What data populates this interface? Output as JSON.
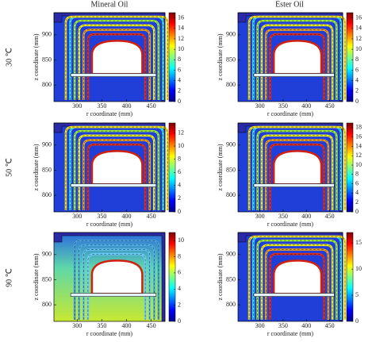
{
  "column_titles": [
    "Mineral Oil",
    "Ester Oil"
  ],
  "row_labels": [
    "30 ℃",
    "50 ℃",
    "90 ℃"
  ],
  "chart_data": [
    {
      "type": "field",
      "xlabel": "r coordinate (mm)",
      "ylabel": "z coordinate (mm)",
      "xlim": [
        253,
        478
      ],
      "ylim": [
        767,
        944
      ],
      "xticks": [
        300,
        350,
        400,
        450
      ],
      "yticks": [
        800,
        850,
        900
      ],
      "clim": [
        0,
        17
      ],
      "cticks": [
        0,
        2,
        4,
        6,
        8,
        10,
        12,
        14,
        16
      ]
    },
    {
      "type": "field",
      "xlabel": "r coordinate (mm)",
      "ylabel": "z coordinate (mm)",
      "xlim": [
        253,
        478
      ],
      "ylim": [
        767,
        944
      ],
      "xticks": [
        300,
        350,
        400,
        450
      ],
      "yticks": [
        800,
        850,
        900
      ],
      "clim": [
        0,
        17
      ],
      "cticks": [
        0,
        2,
        4,
        6,
        8,
        10,
        12,
        14,
        16
      ]
    },
    {
      "type": "field",
      "xlabel": "r coordinate (mm)",
      "ylabel": "z coordinate (mm)",
      "xlim": [
        253,
        478
      ],
      "ylim": [
        767,
        944
      ],
      "xticks": [
        300,
        350,
        400,
        450
      ],
      "yticks": [
        800,
        850,
        900
      ],
      "clim": [
        0,
        13.5
      ],
      "cticks": [
        0,
        2,
        4,
        6,
        8,
        10,
        12
      ]
    },
    {
      "type": "field",
      "xlabel": "r coordinate (mm)",
      "ylabel": "z coordinate (mm)",
      "xlim": [
        253,
        478
      ],
      "ylim": [
        767,
        944
      ],
      "xticks": [
        300,
        350,
        400,
        450
      ],
      "yticks": [
        800,
        850,
        900
      ],
      "clim": [
        0,
        19
      ],
      "cticks": [
        0,
        2,
        4,
        6,
        8,
        10,
        12,
        14,
        16,
        18
      ]
    },
    {
      "type": "field",
      "xlabel": "r coordinate (mm)",
      "ylabel": "z coordinate (mm)",
      "xlim": [
        253,
        478
      ],
      "ylim": [
        767,
        944
      ],
      "xticks": [
        300,
        350,
        400,
        450
      ],
      "yticks": [
        800,
        850,
        900
      ],
      "clim": [
        0,
        11
      ],
      "cticks": [
        0,
        2,
        4,
        6,
        8,
        10
      ]
    },
    {
      "type": "field",
      "xlabel": "r coordinate (mm)",
      "ylabel": "z coordinate (mm)",
      "xlim": [
        253,
        478
      ],
      "ylim": [
        767,
        944
      ],
      "xticks": [
        300,
        350,
        400,
        450
      ],
      "yticks": [
        800,
        850,
        900
      ],
      "clim": [
        0,
        17
      ],
      "cticks": [
        0,
        5,
        10,
        15
      ]
    }
  ]
}
